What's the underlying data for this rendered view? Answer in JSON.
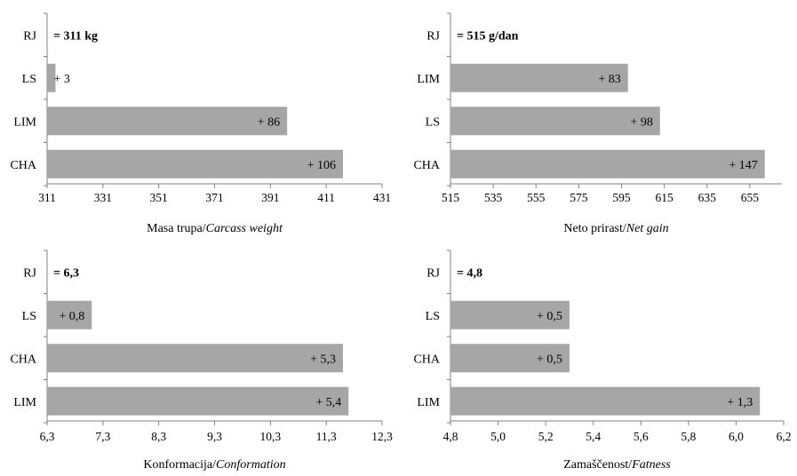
{
  "chart_data": [
    {
      "type": "bar",
      "orientation": "horizontal",
      "categories": [
        "RJ",
        "LS",
        "LIM",
        "CHA"
      ],
      "values": [
        311,
        314,
        397,
        417
      ],
      "bar_labels": [
        "= 311 kg",
        "+ 3",
        "+ 86",
        "+ 106"
      ],
      "baseline": 311,
      "xlabel_plain": "Masa trupa/",
      "xlabel_italic": "Carcass weight",
      "xlim": [
        311,
        431
      ],
      "ticks": [
        "311",
        "331",
        "351",
        "371",
        "391",
        "411",
        "431"
      ],
      "tick_values": [
        311,
        331,
        351,
        371,
        391,
        411,
        431
      ],
      "bar_color": "#a6a6a6"
    },
    {
      "type": "bar",
      "orientation": "horizontal",
      "categories": [
        "RJ",
        "LIM",
        "LS",
        "CHA"
      ],
      "values": [
        515,
        598,
        613,
        662
      ],
      "bar_labels": [
        "= 515 g/dan",
        "+ 83",
        "+ 98",
        "+ 147"
      ],
      "baseline": 515,
      "xlabel_plain": "Neto prirast/",
      "xlabel_italic": "Net gain",
      "xlim": [
        515,
        670
      ],
      "ticks": [
        "515",
        "535",
        "555",
        "575",
        "595",
        "615",
        "635",
        "655"
      ],
      "tick_values": [
        515,
        535,
        555,
        575,
        595,
        615,
        635,
        655
      ],
      "bar_color": "#a6a6a6"
    },
    {
      "type": "bar",
      "orientation": "horizontal",
      "categories": [
        "RJ",
        "LS",
        "CHA",
        "LIM"
      ],
      "values": [
        6.3,
        7.1,
        11.6,
        11.7
      ],
      "bar_labels": [
        "= 6,3",
        "+ 0,8",
        "+ 5,3",
        "+ 5,4"
      ],
      "baseline": 6.3,
      "xlabel_plain": "Konformacija/",
      "xlabel_italic": "Conformation",
      "xlim": [
        6.3,
        12.3
      ],
      "ticks": [
        "6,3",
        "7,3",
        "8,3",
        "9,3",
        "10,3",
        "11,3",
        "12,3"
      ],
      "tick_values": [
        6.3,
        7.3,
        8.3,
        9.3,
        10.3,
        11.3,
        12.3
      ],
      "bar_color": "#a6a6a6"
    },
    {
      "type": "bar",
      "orientation": "horizontal",
      "categories": [
        "RJ",
        "LS",
        "CHA",
        "LIM"
      ],
      "values": [
        4.8,
        5.3,
        5.3,
        6.1
      ],
      "bar_labels": [
        "= 4,8",
        "+ 0,5",
        "+ 0,5",
        "+ 1,3"
      ],
      "baseline": 4.8,
      "xlabel_plain": "Zamaščenost/",
      "xlabel_italic": "Fatness",
      "xlim": [
        4.8,
        6.2
      ],
      "ticks": [
        "4,8",
        "5,0",
        "5,2",
        "5,4",
        "5,6",
        "5,8",
        "6,0",
        "6,2"
      ],
      "tick_values": [
        4.8,
        5.0,
        5.2,
        5.4,
        5.6,
        5.8,
        6.0,
        6.2
      ],
      "bar_color": "#a6a6a6"
    }
  ]
}
